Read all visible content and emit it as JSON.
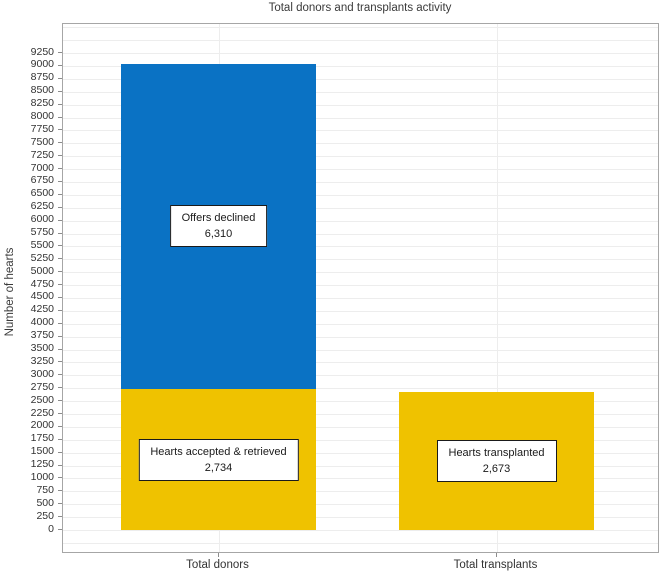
{
  "chart_data": {
    "type": "bar",
    "subtype": "stacked",
    "title": "Total donors and transplants activity",
    "ylabel": "Number of hearts",
    "xlabel": "",
    "ylim": [
      0,
      9250
    ],
    "ytick_step": 250,
    "grid": true,
    "legend_position": "none",
    "categories": [
      "Total donors",
      "Total transplants"
    ],
    "bars": [
      {
        "category": "Total donors",
        "total": 9044,
        "segments": [
          {
            "label": "Hearts accepted & retrieved",
            "value": 2734,
            "value_display": "2,734",
            "color": "#efc200"
          },
          {
            "label": "Offers declined",
            "value": 6310,
            "value_display": "6,310",
            "color": "#0a72c4"
          }
        ]
      },
      {
        "category": "Total transplants",
        "total": 2673,
        "segments": [
          {
            "label": "Hearts transplanted",
            "value": 2673,
            "value_display": "2,673",
            "color": "#efc200"
          }
        ]
      }
    ]
  }
}
